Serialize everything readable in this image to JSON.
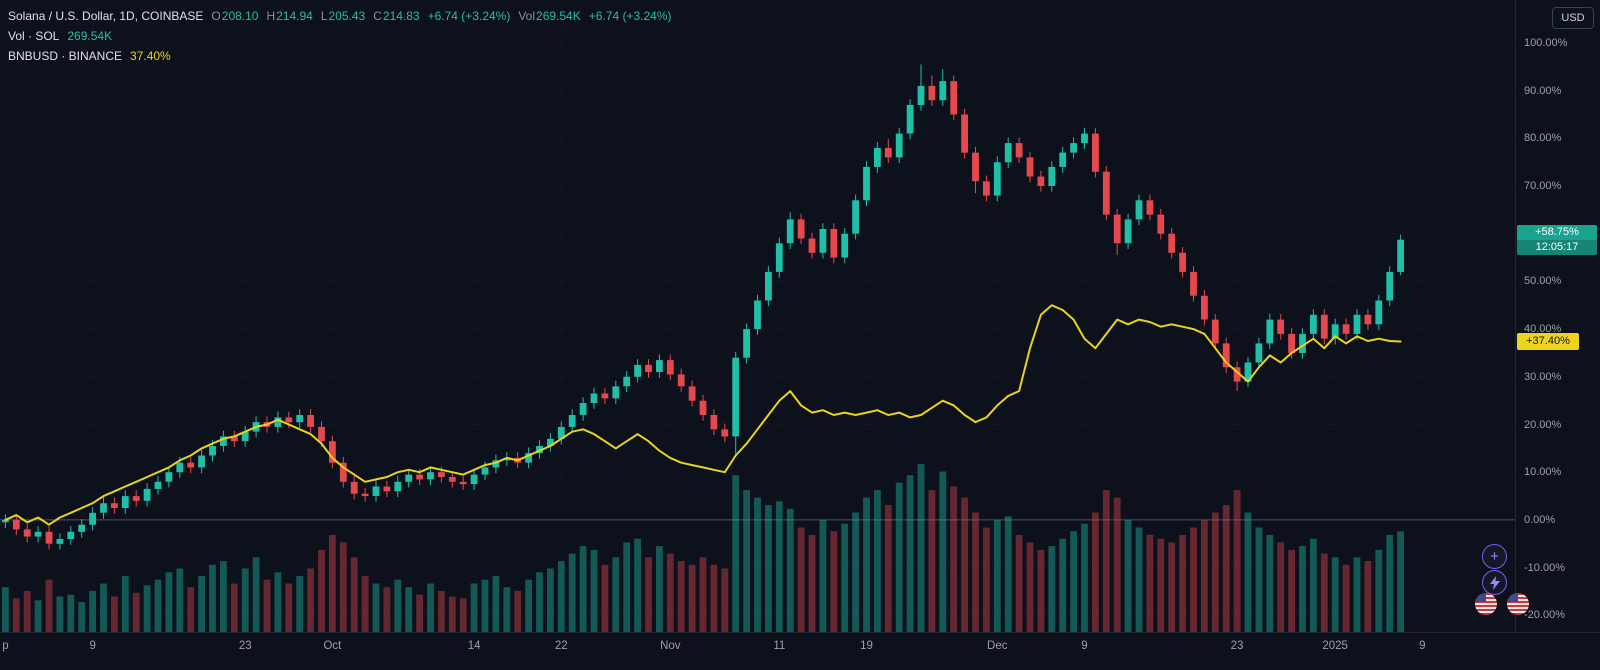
{
  "header": {
    "symbol_title": "Solana / U.S. Dollar, 1D, COINBASE",
    "ohlc": [
      {
        "l": "O",
        "v": "208.10"
      },
      {
        "l": "H",
        "v": "214.94"
      },
      {
        "l": "L",
        "v": "205.43"
      },
      {
        "l": "C",
        "v": "214.83"
      }
    ],
    "change": "+6.74 (+3.24%)",
    "vol_label": "Vol",
    "vol_value": "269.54K",
    "change_secondary": "+6.74 (+3.24%)",
    "volume_row": {
      "label": "Vol · SOL",
      "value": "269.54K"
    },
    "comparison_row": {
      "label": "BNBUSD · BINANCE",
      "value": "37.40%"
    },
    "currency_button": "USD"
  },
  "price_badges": {
    "sol": {
      "label": "+58.75%",
      "countdown": "12:05:17"
    },
    "bnb": {
      "label": "+37.40%"
    }
  },
  "side_buttons": {
    "target_button": "+",
    "flags": "us-economic-events"
  },
  "chart_data": {
    "type": "candlestick",
    "title": "Solana / U.S. Dollar, 1D, COINBASE vs BNBUSD · BINANCE",
    "unit": "percent-change",
    "timeframe": "1D",
    "ylim": [
      -20,
      100
    ],
    "grid": true,
    "legend_position": "top-left",
    "slots": 139,
    "current_change_pct": 58.75,
    "y_ticks": [
      100,
      90,
      80,
      70,
      60,
      50,
      40,
      30,
      20,
      10,
      0,
      -10,
      -20
    ],
    "y_tick_labels": [
      "100.00%",
      "90.00%",
      "80.00%",
      "70.00%",
      "60.00%",
      "50.00%",
      "40.00%",
      "30.00%",
      "20.00%",
      "10.00%",
      "0.00%",
      "-10.00%",
      "-20.00%"
    ],
    "time_labels": [
      {
        "text": "p",
        "index": 0
      },
      {
        "text": "9",
        "index": 8
      },
      {
        "text": "23",
        "index": 22
      },
      {
        "text": "Oct",
        "index": 30
      },
      {
        "text": "14",
        "index": 43
      },
      {
        "text": "22",
        "index": 51
      },
      {
        "text": "Nov",
        "index": 61
      },
      {
        "text": "11",
        "index": 71
      },
      {
        "text": "19",
        "index": 79
      },
      {
        "text": "Dec",
        "index": 91
      },
      {
        "text": "9",
        "index": 99
      },
      {
        "text": "23",
        "index": 113
      },
      {
        "text": "2025",
        "index": 122
      },
      {
        "text": "9",
        "index": 130
      }
    ],
    "candles_ohlc": [
      [
        -0.5,
        1.2,
        -1.7,
        0
      ],
      [
        0,
        1.2,
        -3.2,
        -2
      ],
      [
        -2,
        -0.8,
        -4.7,
        -3.5
      ],
      [
        -3.5,
        -1.3,
        -4.7,
        -2.5
      ],
      [
        -2.5,
        -1.3,
        -6.2,
        -5
      ],
      [
        -5,
        -2.8,
        -6.2,
        -4
      ],
      [
        -4,
        -1.3,
        -5.2,
        -2.5
      ],
      [
        -2.5,
        0.2,
        -3.7,
        -1
      ],
      [
        -1,
        2.7,
        -2.2,
        1.5
      ],
      [
        1.5,
        4.7,
        0.3,
        3.5
      ],
      [
        3.5,
        4.7,
        1.3,
        2.5
      ],
      [
        2.5,
        6.2,
        1.3,
        5
      ],
      [
        5,
        6.2,
        2.8,
        4
      ],
      [
        4,
        7.7,
        2.8,
        6.5
      ],
      [
        6.5,
        9.2,
        5.3,
        8
      ],
      [
        8,
        11.2,
        6.8,
        10
      ],
      [
        10,
        13.2,
        8.8,
        12
      ],
      [
        12,
        13.2,
        9.8,
        11
      ],
      [
        11,
        14.7,
        9.8,
        13.5
      ],
      [
        13.5,
        16.7,
        12.3,
        15.5
      ],
      [
        15.5,
        18.7,
        14.3,
        17.5
      ],
      [
        17.5,
        18.7,
        15.3,
        16.5
      ],
      [
        16.5,
        19.7,
        15.3,
        18.5
      ],
      [
        18.5,
        21.7,
        17.3,
        20.5
      ],
      [
        20.5,
        21.7,
        18.3,
        19.5
      ],
      [
        19.5,
        22.7,
        18.3,
        21.5
      ],
      [
        21.5,
        22.7,
        19.3,
        20.5
      ],
      [
        20.5,
        23.2,
        19.3,
        22
      ],
      [
        22,
        23.2,
        18.3,
        19.5
      ],
      [
        19.5,
        20.7,
        15.3,
        16.5
      ],
      [
        16.5,
        17.7,
        10.8,
        12
      ],
      [
        12,
        13.2,
        6.8,
        8
      ],
      [
        8,
        9.2,
        4.3,
        5.5
      ],
      [
        5.5,
        6.7,
        3.8,
        5
      ],
      [
        5,
        8.2,
        3.8,
        7
      ],
      [
        7,
        8.2,
        4.8,
        6
      ],
      [
        6,
        9.2,
        4.8,
        8
      ],
      [
        8,
        10.7,
        6.8,
        9.5
      ],
      [
        9.5,
        10.7,
        7.3,
        8.5
      ],
      [
        8.5,
        11.2,
        7.3,
        10
      ],
      [
        10,
        11.2,
        7.8,
        9
      ],
      [
        9,
        10.2,
        6.8,
        8
      ],
      [
        8,
        9.2,
        6.3,
        7.5
      ],
      [
        7.5,
        10.7,
        6.3,
        9.5
      ],
      [
        9.5,
        12.2,
        8.3,
        11
      ],
      [
        11,
        13.7,
        9.8,
        12.5
      ],
      [
        12.5,
        14.2,
        11.3,
        13
      ],
      [
        13,
        14.2,
        10.8,
        12
      ],
      [
        12,
        15.2,
        10.8,
        14
      ],
      [
        14,
        16.7,
        12.8,
        15.5
      ],
      [
        15.5,
        18.2,
        14.3,
        17
      ],
      [
        17,
        20.7,
        15.8,
        19.5
      ],
      [
        19.5,
        23.2,
        18.3,
        22
      ],
      [
        22,
        25.7,
        20.8,
        24.5
      ],
      [
        24.5,
        27.7,
        23.3,
        26.5
      ],
      [
        26.5,
        27.7,
        24.3,
        25.5
      ],
      [
        25.5,
        29.2,
        24.3,
        28
      ],
      [
        28,
        31.2,
        26.8,
        30
      ],
      [
        30,
        33.7,
        28.8,
        32.5
      ],
      [
        32.5,
        33.7,
        29.8,
        31
      ],
      [
        31,
        34.7,
        29.8,
        33.5
      ],
      [
        33.5,
        34.7,
        29.3,
        30.5
      ],
      [
        30.5,
        31.7,
        26.8,
        28
      ],
      [
        28,
        29.2,
        23.8,
        25
      ],
      [
        25,
        26.2,
        20.8,
        22
      ],
      [
        22,
        23.2,
        17.8,
        19
      ],
      [
        19,
        20.2,
        16.3,
        17.5
      ],
      [
        17.5,
        35.2,
        13.5,
        34
      ],
      [
        34,
        41.2,
        32.8,
        40
      ],
      [
        40,
        47.2,
        38.8,
        46
      ],
      [
        46,
        53.2,
        44.8,
        52
      ],
      [
        52,
        59.2,
        50.8,
        58
      ],
      [
        58,
        64.5,
        56.8,
        63
      ],
      [
        63,
        64.2,
        57.8,
        59
      ],
      [
        59,
        60.2,
        54.8,
        56
      ],
      [
        56,
        62.2,
        54.8,
        61
      ],
      [
        61,
        62.2,
        53.8,
        55
      ],
      [
        55,
        61.2,
        53.8,
        60
      ],
      [
        60,
        68.2,
        58.8,
        67
      ],
      [
        67,
        75.2,
        65.8,
        74
      ],
      [
        74,
        79.2,
        72.8,
        78
      ],
      [
        78,
        79.8,
        74.8,
        76
      ],
      [
        76,
        82.2,
        74.8,
        81
      ],
      [
        81,
        88.2,
        79.8,
        87
      ],
      [
        87,
        95.5,
        85.8,
        91
      ],
      [
        91,
        93.2,
        86.8,
        88
      ],
      [
        88,
        94.5,
        86.8,
        92
      ],
      [
        92,
        93.2,
        83.8,
        85
      ],
      [
        85,
        86.2,
        75.8,
        77
      ],
      [
        77,
        78.2,
        68.5,
        71
      ],
      [
        71,
        72.2,
        66.8,
        68
      ],
      [
        68,
        76.2,
        66.8,
        75
      ],
      [
        75,
        80.2,
        73.8,
        79
      ],
      [
        79,
        80.2,
        74.8,
        76
      ],
      [
        76,
        77.2,
        70.8,
        72
      ],
      [
        72,
        73.2,
        68.8,
        70
      ],
      [
        70,
        75.2,
        68.8,
        74
      ],
      [
        74,
        78.2,
        72.8,
        77
      ],
      [
        77,
        80.2,
        75.8,
        79
      ],
      [
        79,
        82.2,
        77.8,
        81
      ],
      [
        81,
        82.2,
        71.8,
        73
      ],
      [
        73,
        74.2,
        62.8,
        64
      ],
      [
        64,
        65.2,
        55.5,
        58
      ],
      [
        58,
        64.2,
        56.8,
        63
      ],
      [
        63,
        68.2,
        61.8,
        67
      ],
      [
        67,
        68.2,
        62.8,
        64
      ],
      [
        64,
        65.2,
        58.8,
        60
      ],
      [
        60,
        61.2,
        54.8,
        56
      ],
      [
        56,
        57.2,
        50.8,
        52
      ],
      [
        52,
        53.2,
        45.8,
        47
      ],
      [
        47,
        48.2,
        40.8,
        42
      ],
      [
        42,
        43.2,
        35.8,
        37
      ],
      [
        37,
        38.2,
        30.8,
        32
      ],
      [
        32,
        33.2,
        27,
        29
      ],
      [
        29,
        34.2,
        27.8,
        33
      ],
      [
        33,
        38.2,
        31.8,
        37
      ],
      [
        37,
        43.2,
        35.8,
        42
      ],
      [
        42,
        43.2,
        37.8,
        39
      ],
      [
        39,
        40.2,
        33.8,
        35
      ],
      [
        35,
        40.2,
        33.8,
        39
      ],
      [
        39,
        44.2,
        37.8,
        43
      ],
      [
        43,
        44.2,
        36.8,
        38
      ],
      [
        38,
        42.2,
        36.8,
        41
      ],
      [
        41,
        42.2,
        37.8,
        39
      ],
      [
        39,
        44.2,
        37.8,
        43
      ],
      [
        43,
        44.2,
        39.8,
        41
      ],
      [
        41,
        47.2,
        39.8,
        46
      ],
      [
        46,
        53.2,
        44.8,
        52
      ],
      [
        52,
        59.8,
        51.3,
        58.75
      ]
    ],
    "volumes": [
      120,
      90,
      110,
      85,
      140,
      95,
      100,
      80,
      110,
      130,
      95,
      150,
      105,
      125,
      140,
      160,
      170,
      120,
      150,
      180,
      190,
      130,
      170,
      200,
      140,
      160,
      130,
      150,
      170,
      220,
      260,
      240,
      200,
      150,
      130,
      120,
      140,
      120,
      100,
      130,
      110,
      95,
      90,
      130,
      140,
      150,
      120,
      110,
      140,
      160,
      170,
      190,
      210,
      230,
      220,
      180,
      200,
      240,
      250,
      200,
      230,
      210,
      190,
      180,
      200,
      180,
      170,
      420,
      380,
      360,
      340,
      350,
      330,
      280,
      260,
      300,
      270,
      290,
      320,
      360,
      380,
      340,
      400,
      420,
      450,
      380,
      430,
      390,
      360,
      320,
      280,
      300,
      310,
      260,
      240,
      220,
      230,
      250,
      270,
      290,
      320,
      380,
      360,
      300,
      280,
      260,
      250,
      240,
      260,
      280,
      300,
      320,
      340,
      380,
      320,
      280,
      260,
      240,
      220,
      230,
      250,
      210,
      200,
      180,
      200,
      190,
      220,
      260,
      269.54
    ],
    "comparison_series": {
      "name": "BNBUSD",
      "current": 37.4,
      "values": [
        0,
        1,
        -0.5,
        0.5,
        -1,
        0.5,
        1.5,
        2.5,
        3.5,
        5,
        6,
        7,
        8,
        9,
        10,
        11,
        12.5,
        13.5,
        15,
        16,
        17,
        17.5,
        18.5,
        19.5,
        20,
        21,
        20,
        19,
        18,
        16,
        13,
        11,
        9.5,
        8,
        8.5,
        9,
        10,
        10.5,
        10,
        11,
        10.5,
        10,
        9.5,
        10.5,
        11.5,
        12,
        13,
        12.5,
        13.5,
        14.5,
        15.5,
        17,
        18.5,
        19,
        18,
        16.5,
        15,
        16.5,
        18,
        16.5,
        14.5,
        13,
        12,
        11.5,
        11,
        10.5,
        10,
        13.5,
        16,
        19,
        22,
        25,
        27,
        24,
        22.5,
        23,
        22,
        22.5,
        22,
        22.5,
        23,
        22,
        22.5,
        21.5,
        22,
        23.5,
        25,
        24,
        22,
        20.5,
        21.5,
        24,
        26,
        27,
        36,
        43,
        45,
        44,
        42,
        38,
        36,
        39,
        42,
        41,
        42,
        41.5,
        40.5,
        41,
        40.5,
        40,
        39,
        36,
        33,
        31,
        29,
        32,
        34.5,
        33,
        35,
        36.5,
        38,
        36,
        38.5,
        37,
        38.5,
        37.5,
        38,
        37.5,
        37.4
      ]
    },
    "colors": {
      "background": "#0c111c",
      "up": "#1fbfa8",
      "down": "#e5484d",
      "volume_up": "rgba(31,191,168,0.42)",
      "volume_down": "rgba(229,72,77,0.42)",
      "comparison_line": "#e9d31d",
      "grid": "rgba(151,166,196,0.10)",
      "zero_line": "rgba(150,160,175,0.45)",
      "axis_text": "#9aa0ac",
      "sol_badge": "#1ba390",
      "bnb_badge": "#edd320"
    }
  }
}
